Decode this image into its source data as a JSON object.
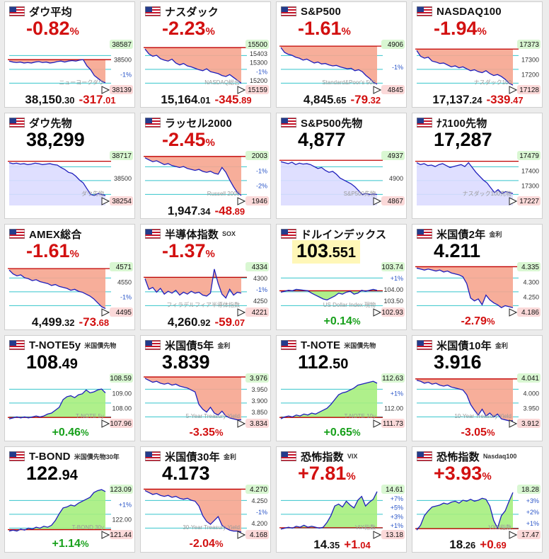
{
  "colors": {
    "down": "#d21010",
    "up": "#17a01b",
    "fill_down": "#f6a58f",
    "fill_up": "#a6ee7e",
    "fill_neutral": "#dcdcff",
    "line": "#1e1ebc",
    "ref_line": "#c00000",
    "grid": "#35c4cc"
  },
  "panels": [
    {
      "flag": "us-flag-icon",
      "name": "ダウ平均",
      "pct_int": "-0.82",
      "pct_unit": "%",
      "fill": "down",
      "labels": {
        "hi": "38587",
        "ref": "38500",
        "lo": "38139",
        "m1": "-1%"
      },
      "watermark": "ニューヨークダウ",
      "foot_val": "38,150",
      "foot_val_dec": ".30",
      "foot_chg": "-317",
      "foot_chg_dec": ".01",
      "foot_chg_dir": "down",
      "series": [
        40,
        42,
        43,
        42,
        44,
        43,
        44,
        42,
        41,
        43,
        42,
        44,
        43,
        41,
        40,
        42,
        40,
        39,
        40,
        38,
        37,
        50,
        58,
        70,
        76,
        82,
        85
      ]
    },
    {
      "flag": "us-flag-icon",
      "name": "ナスダック",
      "pct_int": "-2.23",
      "pct_unit": "%",
      "fill": "down",
      "labels": {
        "hi": "15500",
        "ref": "15403",
        "m1": "-1%",
        "a": "15300",
        "b": "15200",
        "lo": "15159"
      },
      "watermark": "NASDAQ総合",
      "foot_val": "15,164",
      "foot_val_dec": ".01",
      "foot_chg": "-345",
      "foot_chg_dec": ".89",
      "foot_chg_dir": "down",
      "series": [
        15,
        25,
        30,
        28,
        35,
        38,
        40,
        36,
        44,
        48,
        45,
        50,
        52,
        55,
        58,
        60,
        56,
        62,
        64,
        66,
        70,
        72,
        68,
        74,
        80,
        86
      ]
    },
    {
      "flag": "us-flag-icon",
      "name": "S&P500",
      "pct_int": "-1.61",
      "pct_unit": "%",
      "fill": "down",
      "labels": {
        "hi": "4906",
        "m1": "-1%",
        "lo": "4845"
      },
      "watermark": "Standard&Poor's 500",
      "foot_val": "4,845",
      "foot_val_dec": ".65",
      "foot_chg": "-79",
      "foot_chg_dec": ".32",
      "foot_chg_dir": "down",
      "series": [
        12,
        22,
        26,
        28,
        32,
        34,
        38,
        36,
        40,
        44,
        42,
        46,
        45,
        48,
        50,
        49,
        52,
        54,
        56,
        55,
        60,
        58,
        62,
        70,
        76,
        84,
        88
      ]
    },
    {
      "flag": "us-flag-icon",
      "name": "NASDAQ100",
      "pct_int": "-1.94",
      "pct_unit": "%",
      "fill": "down",
      "labels": {
        "hi": "17373",
        "a": "17300",
        "b": "17200",
        "lo": "17128"
      },
      "watermark": "ナスダック100",
      "foot_val": "17,137",
      "foot_val_dec": ".24",
      "foot_chg": "-339",
      "foot_chg_dec": ".47",
      "foot_chg_dir": "down",
      "series": [
        18,
        30,
        34,
        32,
        40,
        42,
        45,
        44,
        48,
        52,
        50,
        54,
        52,
        56,
        60,
        58,
        62,
        64,
        60,
        66,
        70,
        68,
        72,
        78,
        86,
        90
      ]
    },
    {
      "flag": "us-flag-icon",
      "name": "ダウ先物",
      "big_int": "38,299",
      "fill": "neutral",
      "labels": {
        "hi": "38717",
        "a": "38500",
        "lo": "38254"
      },
      "watermark": "ダウ先物",
      "series": [
        20,
        22,
        21,
        23,
        22,
        24,
        23,
        21,
        22,
        24,
        23,
        22,
        24,
        25,
        30,
        34,
        40,
        42,
        48,
        56,
        62,
        74,
        86,
        88,
        84,
        86,
        88
      ]
    },
    {
      "flag": "us-flag-icon",
      "name": "ラッセル2000",
      "pct_int": "-2.45",
      "pct_unit": "%",
      "fill": "down",
      "labels": {
        "hi": "2003",
        "m1": "-1%",
        "m2": "-2%",
        "lo": "1946"
      },
      "watermark": "Russell 2000",
      "foot_val": "1,947",
      "foot_val_dec": ".34",
      "foot_chg": "-48",
      "foot_chg_dec": ".89",
      "foot_chg_dir": "down",
      "series": [
        10,
        14,
        18,
        16,
        20,
        24,
        22,
        26,
        28,
        30,
        28,
        32,
        34,
        36,
        34,
        38,
        40,
        38,
        42,
        44,
        30,
        40,
        56,
        70,
        82,
        88
      ]
    },
    {
      "flag": "us-flag-icon",
      "name": "S&P500先物",
      "big_int": "4,877",
      "fill": "neutral",
      "labels": {
        "hi": "4937",
        "a": "4900",
        "lo": "4867"
      },
      "watermark": "S&P500先物",
      "series": [
        18,
        20,
        22,
        19,
        24,
        21,
        23,
        22,
        24,
        28,
        32,
        30,
        36,
        40,
        38,
        44,
        52,
        56,
        60,
        64,
        70,
        78,
        86,
        84,
        86,
        85,
        86
      ]
    },
    {
      "flag": "us-flag-icon",
      "name": "ﾅｽ100先物",
      "big_int": "17,287",
      "fill": "neutral",
      "labels": {
        "hi": "17479",
        "a": "17400",
        "b": "17300",
        "lo": "17227"
      },
      "watermark": "ナスダック100先物",
      "series": [
        20,
        24,
        22,
        26,
        25,
        28,
        24,
        22,
        26,
        30,
        28,
        26,
        24,
        28,
        20,
        30,
        40,
        48,
        56,
        62,
        72,
        82,
        76,
        84,
        80,
        82,
        84
      ]
    },
    {
      "flag": "us-flag-icon",
      "name": "AMEX総合",
      "pct_int": "-1.61",
      "pct_unit": "%",
      "fill": "down",
      "labels": {
        "hi": "4571",
        "a": "4550",
        "m1": "-1%",
        "lo": "4495"
      },
      "watermark": "",
      "foot_val": "4,499",
      "foot_val_dec": ".32",
      "foot_chg": "-73",
      "foot_chg_dec": ".68",
      "foot_chg_dir": "down",
      "series": [
        12,
        20,
        24,
        22,
        28,
        30,
        34,
        32,
        36,
        38,
        40,
        44,
        42,
        46,
        48,
        50,
        54,
        52,
        56,
        58,
        62,
        66,
        72,
        80,
        88,
        92
      ]
    },
    {
      "flag": "us-flag-icon",
      "name": "半導体指数",
      "sub": "SOX",
      "pct_int": "-1.37",
      "pct_unit": "%",
      "fill": "down",
      "labels": {
        "hi": "4334",
        "a": "4300",
        "m1": "-1%",
        "b": "4250",
        "lo": "4221"
      },
      "watermark": "フィラデルフィア半導体指数",
      "foot_val": "4,260",
      "foot_val_dec": ".92",
      "foot_chg": "-59",
      "foot_chg_dec": ".07",
      "foot_chg_dir": "down",
      "series": [
        30,
        52,
        48,
        58,
        50,
        62,
        56,
        60,
        54,
        64,
        58,
        62,
        56,
        60,
        58,
        64,
        66,
        60,
        10,
        40,
        62,
        70,
        52,
        64,
        58,
        60
      ]
    },
    {
      "flag": "us-flag-icon",
      "name": "ドルインデックス",
      "big_int": "103",
      "big_dec": ".551",
      "big_style": "yellow",
      "fill": "up",
      "labels": {
        "p1": "+1%",
        "a": "104.00",
        "hi": "103.74",
        "b": "103.50",
        "lo": "102.93"
      },
      "watermark": "US Dollar Index 現物",
      "foot_chg": "+0.14",
      "foot_chg_unit": "%",
      "foot_chg_dir": "up",
      "foot_single": true,
      "series": [
        58,
        56,
        54,
        55,
        52,
        53,
        54,
        55,
        60,
        64,
        68,
        72,
        74,
        70,
        66,
        60,
        62,
        58,
        56,
        62,
        60,
        54,
        56,
        54,
        52,
        54
      ]
    },
    {
      "flag": "us-flag-icon",
      "name": "米国債2年",
      "sub": "金利",
      "big_int": "4.211",
      "fill": "down",
      "labels": {
        "hi": "4.335",
        "a": "4.300",
        "b": "4.250",
        "lo": "4.186"
      },
      "watermark": "",
      "foot_chg": "-2.79",
      "foot_chg_unit": "%",
      "foot_chg_dir": "down",
      "foot_single": true,
      "series": [
        8,
        10,
        12,
        10,
        12,
        14,
        12,
        16,
        14,
        18,
        20,
        22,
        26,
        40,
        70,
        76,
        72,
        84,
        64,
        74,
        80,
        84,
        90,
        86,
        88,
        90
      ]
    },
    {
      "flag": "us-flag-icon",
      "name": "T-NOTE5y",
      "sub": "米国債先物",
      "big_int": "108",
      "big_dec": ".49",
      "fill": "up",
      "labels": {
        "a": "109.00",
        "hi": "108.59",
        "b": "108.00",
        "lo": "107.96"
      },
      "watermark": "T-NOTE 5y",
      "foot_chg": "+0.46",
      "foot_chg_unit": "%",
      "foot_chg_dir": "up",
      "foot_single": true,
      "series": [
        90,
        88,
        86,
        88,
        86,
        88,
        86,
        84,
        86,
        84,
        80,
        78,
        72,
        66,
        50,
        44,
        42,
        46,
        40,
        38,
        30,
        36,
        34,
        30,
        28,
        36
      ]
    },
    {
      "flag": "us-flag-icon",
      "name": "米国債5年",
      "sub": "金利",
      "big_int": "3.839",
      "fill": "down",
      "labels": {
        "hi": "3.976",
        "a": "3.950",
        "b": "3.900",
        "c": "3.850",
        "lo": "3.834"
      },
      "watermark": "5-Year Treasury Yield",
      "foot_chg": "-3.35",
      "foot_chg_unit": "%",
      "foot_chg_dir": "down",
      "foot_single": true,
      "series": [
        6,
        10,
        14,
        12,
        16,
        18,
        16,
        20,
        18,
        22,
        24,
        26,
        30,
        34,
        60,
        70,
        76,
        66,
        78,
        82,
        74,
        84,
        88,
        90,
        92,
        92
      ]
    },
    {
      "flag": "us-flag-icon",
      "name": "T-NOTE",
      "sub": "米国債先物",
      "big_int": "112",
      "big_dec": ".50",
      "fill": "up",
      "labels": {
        "p1": "+1%",
        "hi": "112.63",
        "a": "112.00",
        "lo": "111.73"
      },
      "watermark": "T-NOTE 10y",
      "foot_chg": "+0.65",
      "foot_chg_unit": "%",
      "foot_chg_dir": "up",
      "foot_single": true,
      "series": [
        90,
        86,
        84,
        86,
        82,
        84,
        80,
        82,
        78,
        80,
        76,
        72,
        68,
        60,
        50,
        40,
        36,
        34,
        30,
        26,
        20,
        18,
        16,
        14,
        12,
        16
      ]
    },
    {
      "flag": "us-flag-icon",
      "name": "米国債10年",
      "sub": "金利",
      "big_int": "3.916",
      "fill": "down",
      "labels": {
        "hi": "4.041",
        "a": "4.000",
        "b": "3.950",
        "lo": "3.912"
      },
      "watermark": "10-Year Treasury Yield",
      "foot_chg": "-3.05",
      "foot_chg_unit": "%",
      "foot_chg_dir": "down",
      "foot_single": true,
      "series": [
        10,
        12,
        16,
        14,
        18,
        16,
        20,
        22,
        20,
        24,
        26,
        28,
        30,
        40,
        60,
        72,
        82,
        70,
        84,
        78,
        86,
        80,
        90,
        92,
        94,
        94
      ]
    },
    {
      "flag": "us-flag-icon",
      "name": "T-BOND",
      "sub": "米国債先物30年",
      "big_int": "122",
      "big_dec": ".94",
      "fill": "up",
      "labels": {
        "hi": "123.09",
        "p1": "+1%",
        "a": "122.00",
        "lo": "121.44"
      },
      "watermark": "T-BOND 30y",
      "foot_chg": "+1.14",
      "foot_chg_unit": "%",
      "foot_chg_dir": "up",
      "foot_single": true,
      "series": [
        92,
        90,
        92,
        88,
        90,
        86,
        88,
        84,
        86,
        82,
        84,
        80,
        70,
        56,
        44,
        42,
        38,
        40,
        34,
        30,
        26,
        22,
        12,
        8,
        6,
        10
      ]
    },
    {
      "flag": "us-flag-icon",
      "name": "米国債30年",
      "sub": "金利",
      "big_int": "4.173",
      "fill": "down",
      "labels": {
        "hi": "4.270",
        "a": "4.250",
        "m1": "-1%",
        "b": "4.200",
        "lo": "4.168"
      },
      "watermark": "30-Year Treasury Yield",
      "foot_chg": "-2.04",
      "foot_chg_unit": "%",
      "foot_chg_dir": "down",
      "foot_single": true,
      "series": [
        8,
        12,
        16,
        14,
        18,
        20,
        18,
        22,
        20,
        24,
        26,
        24,
        28,
        30,
        40,
        60,
        72,
        78,
        70,
        62,
        80,
        86,
        90,
        92,
        92,
        94
      ]
    },
    {
      "flag": "us-flag-icon",
      "name": "恐怖指数",
      "sub": "VIX",
      "pct_int": "+7.81",
      "pct_unit": "%",
      "pct_dir": "down",
      "fill": "up",
      "labels": {
        "hi": "14.61",
        "p7": "+7%",
        "p5": "+5%",
        "p3": "+3%",
        "p1": "+1%",
        "lo": "13.18"
      },
      "watermark": "VIX指数",
      "foot_val": "14",
      "foot_val_dec": ".35",
      "foot_chg": "+1",
      "foot_chg_dec": ".04",
      "foot_chg_dir": "down",
      "series": [
        88,
        86,
        84,
        86,
        82,
        84,
        80,
        84,
        82,
        84,
        86,
        84,
        74,
        60,
        40,
        36,
        42,
        30,
        38,
        44,
        28,
        20,
        40,
        32,
        26,
        10
      ]
    },
    {
      "flag": "us-flag-icon",
      "name": "恐怖指数",
      "sub": "Nasdaq100",
      "pct_int": "+3.93",
      "pct_unit": "%",
      "pct_dir": "down",
      "fill": "up",
      "labels": {
        "hi": "18.28",
        "p3": "+3%",
        "p2": "+2%",
        "p1": "+1%",
        "lo": "17.47"
      },
      "watermark": "VXN指数",
      "foot_val": "18",
      "foot_val_dec": ".26",
      "foot_chg": "+0",
      "foot_chg_dec": ".69",
      "foot_chg_dir": "down",
      "series": [
        90,
        80,
        60,
        50,
        42,
        40,
        38,
        34,
        36,
        32,
        30,
        34,
        28,
        30,
        26,
        30,
        28,
        24,
        26,
        40,
        70,
        86,
        60,
        50,
        30,
        12
      ]
    }
  ]
}
